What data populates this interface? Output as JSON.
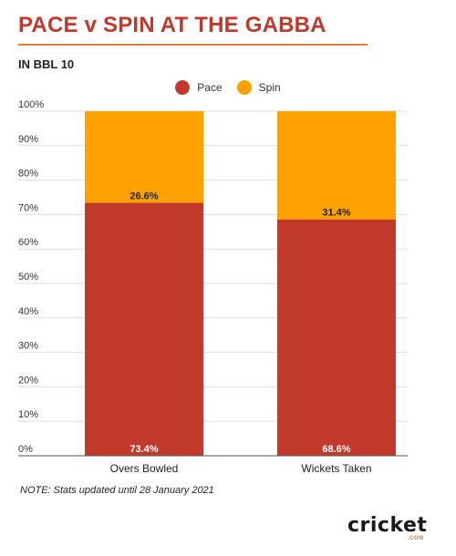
{
  "title": "PACE v SPIN AT THE GABBA",
  "subtitle": "IN BBL 10",
  "note": "NOTE: Stats updated until 28 January 2021",
  "logo": {
    "text": "cricket",
    "sub": "COM"
  },
  "colors": {
    "pace": "#c1392b",
    "spin": "#fca200",
    "title": "#c1392b",
    "rule": "#e07b39"
  },
  "chart_data": {
    "type": "bar",
    "stacked": true,
    "categories": [
      "Overs Bowled",
      "Wickets Taken"
    ],
    "series": [
      {
        "name": "Pace",
        "values": [
          73.4,
          68.6
        ],
        "labels": [
          "73.4%",
          "68.6%"
        ]
      },
      {
        "name": "Spin",
        "values": [
          26.6,
          31.4
        ],
        "labels": [
          "26.6%",
          "31.4%"
        ]
      }
    ],
    "ylim": [
      0,
      100
    ],
    "yticks": [
      "0%",
      "10%",
      "20%",
      "30%",
      "40%",
      "50%",
      "60%",
      "70%",
      "80%",
      "90%",
      "100%"
    ],
    "grid": true,
    "legend": "top-center",
    "xlabel": "",
    "ylabel": ""
  }
}
